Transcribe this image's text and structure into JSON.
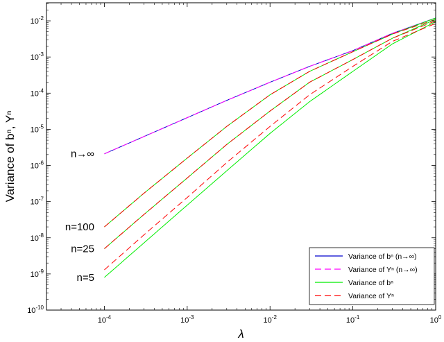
{
  "chart_data": {
    "type": "line",
    "xlabel": "λ",
    "ylabel": "Variance of bⁿ, Yⁿ",
    "xscale": "log",
    "yscale": "log",
    "xlim": [
      2e-05,
      1
    ],
    "ylim": [
      1e-10,
      0.0316
    ],
    "grid": false,
    "legend_position": "bottom-right",
    "x_ticks": [
      {
        "value": 0.0001,
        "base": "10",
        "exp": "-4"
      },
      {
        "value": 0.001,
        "base": "10",
        "exp": "-3"
      },
      {
        "value": 0.01,
        "base": "10",
        "exp": "-2"
      },
      {
        "value": 0.1,
        "base": "10",
        "exp": "-1"
      },
      {
        "value": 1,
        "base": "10",
        "exp": "0"
      }
    ],
    "y_ticks": [
      {
        "value": 1e-10,
        "base": "10",
        "exp": "-10"
      },
      {
        "value": 1e-09,
        "base": "10",
        "exp": "-9"
      },
      {
        "value": 1e-08,
        "base": "10",
        "exp": "-8"
      },
      {
        "value": 1e-07,
        "base": "10",
        "exp": "-7"
      },
      {
        "value": 1e-06,
        "base": "10",
        "exp": "-6"
      },
      {
        "value": 1e-05,
        "base": "10",
        "exp": "-5"
      },
      {
        "value": 0.0001,
        "base": "10",
        "exp": "-4"
      },
      {
        "value": 0.001,
        "base": "10",
        "exp": "-3"
      },
      {
        "value": 0.01,
        "base": "10",
        "exp": "-2"
      }
    ],
    "curve_labels": [
      {
        "text": "n→∞",
        "y": 2.1e-06
      },
      {
        "text": "n=100",
        "y": 2e-08
      },
      {
        "text": "n=25",
        "y": 5e-09
      },
      {
        "text": "n=5",
        "y": 8e-10
      }
    ],
    "legend": [
      {
        "text": "Variance of bⁿ (n→∞)",
        "color": "#0000cc",
        "dash": "solid"
      },
      {
        "text": "Variance of Yⁿ (n→∞)",
        "color": "#ff00ff",
        "dash": "dashed"
      },
      {
        "text": "Variance of bⁿ",
        "color": "#00ee00",
        "dash": "solid"
      },
      {
        "text": "Variance of Yⁿ",
        "color": "#ff0000",
        "dash": "dashed"
      }
    ],
    "x": [
      0.0001,
      0.0003,
      0.001,
      0.003,
      0.01,
      0.03,
      0.1,
      0.3,
      1
    ],
    "series": [
      {
        "name": "Variance of bⁿ (n→∞)",
        "color": "#0000cc",
        "dash": "solid",
        "values": [
          2.1e-06,
          6.3e-06,
          2.1e-05,
          6.3e-05,
          0.0002,
          0.00055,
          0.0015,
          0.0045,
          0.012
        ]
      },
      {
        "name": "Variance of Yⁿ (n→∞)",
        "color": "#ff00ff",
        "dash": "dashed",
        "values": [
          2.1e-06,
          6.3e-06,
          2.1e-05,
          6.3e-05,
          0.0002,
          0.00055,
          0.0015,
          0.0045,
          0.012
        ]
      },
      {
        "name": "Variance of bⁿ",
        "color": "#00ee00",
        "dash": "solid",
        "values": [
          2e-08,
          1.7e-07,
          1.6e-06,
          1.2e-05,
          9e-05,
          0.0004,
          0.0014,
          0.0043,
          0.012
        ]
      },
      {
        "name": "Variance of Yⁿ",
        "color": "#ff0000",
        "dash": "dashed",
        "values": [
          2e-08,
          1.7e-07,
          1.6e-06,
          1.2e-05,
          9e-05,
          0.0004,
          0.0014,
          0.0043,
          0.011
        ]
      },
      {
        "name": "",
        "color": "#00ee00",
        "dash": "solid",
        "values": [
          5e-09,
          4.4e-08,
          4.5e-07,
          3.8e-06,
          3.2e-05,
          0.0002,
          0.00085,
          0.0033,
          0.011
        ]
      },
      {
        "name": "",
        "color": "#ff0000",
        "dash": "dashed",
        "values": [
          5e-09,
          4.4e-08,
          4.5e-07,
          3.8e-06,
          3.2e-05,
          0.0002,
          0.00085,
          0.0033,
          0.01
        ]
      },
      {
        "name": "",
        "color": "#00ee00",
        "dash": "solid",
        "values": [
          8e-10,
          7.2e-09,
          8e-08,
          7.1e-07,
          7.7e-06,
          5.8e-05,
          0.0004,
          0.0023,
          0.0095
        ]
      },
      {
        "name": "",
        "color": "#ff0000",
        "dash": "dashed",
        "values": [
          1.3e-09,
          1.2e-08,
          1.3e-07,
          1.2e-06,
          1.2e-05,
          9e-05,
          0.00055,
          0.0027,
          0.0085
        ]
      }
    ]
  }
}
